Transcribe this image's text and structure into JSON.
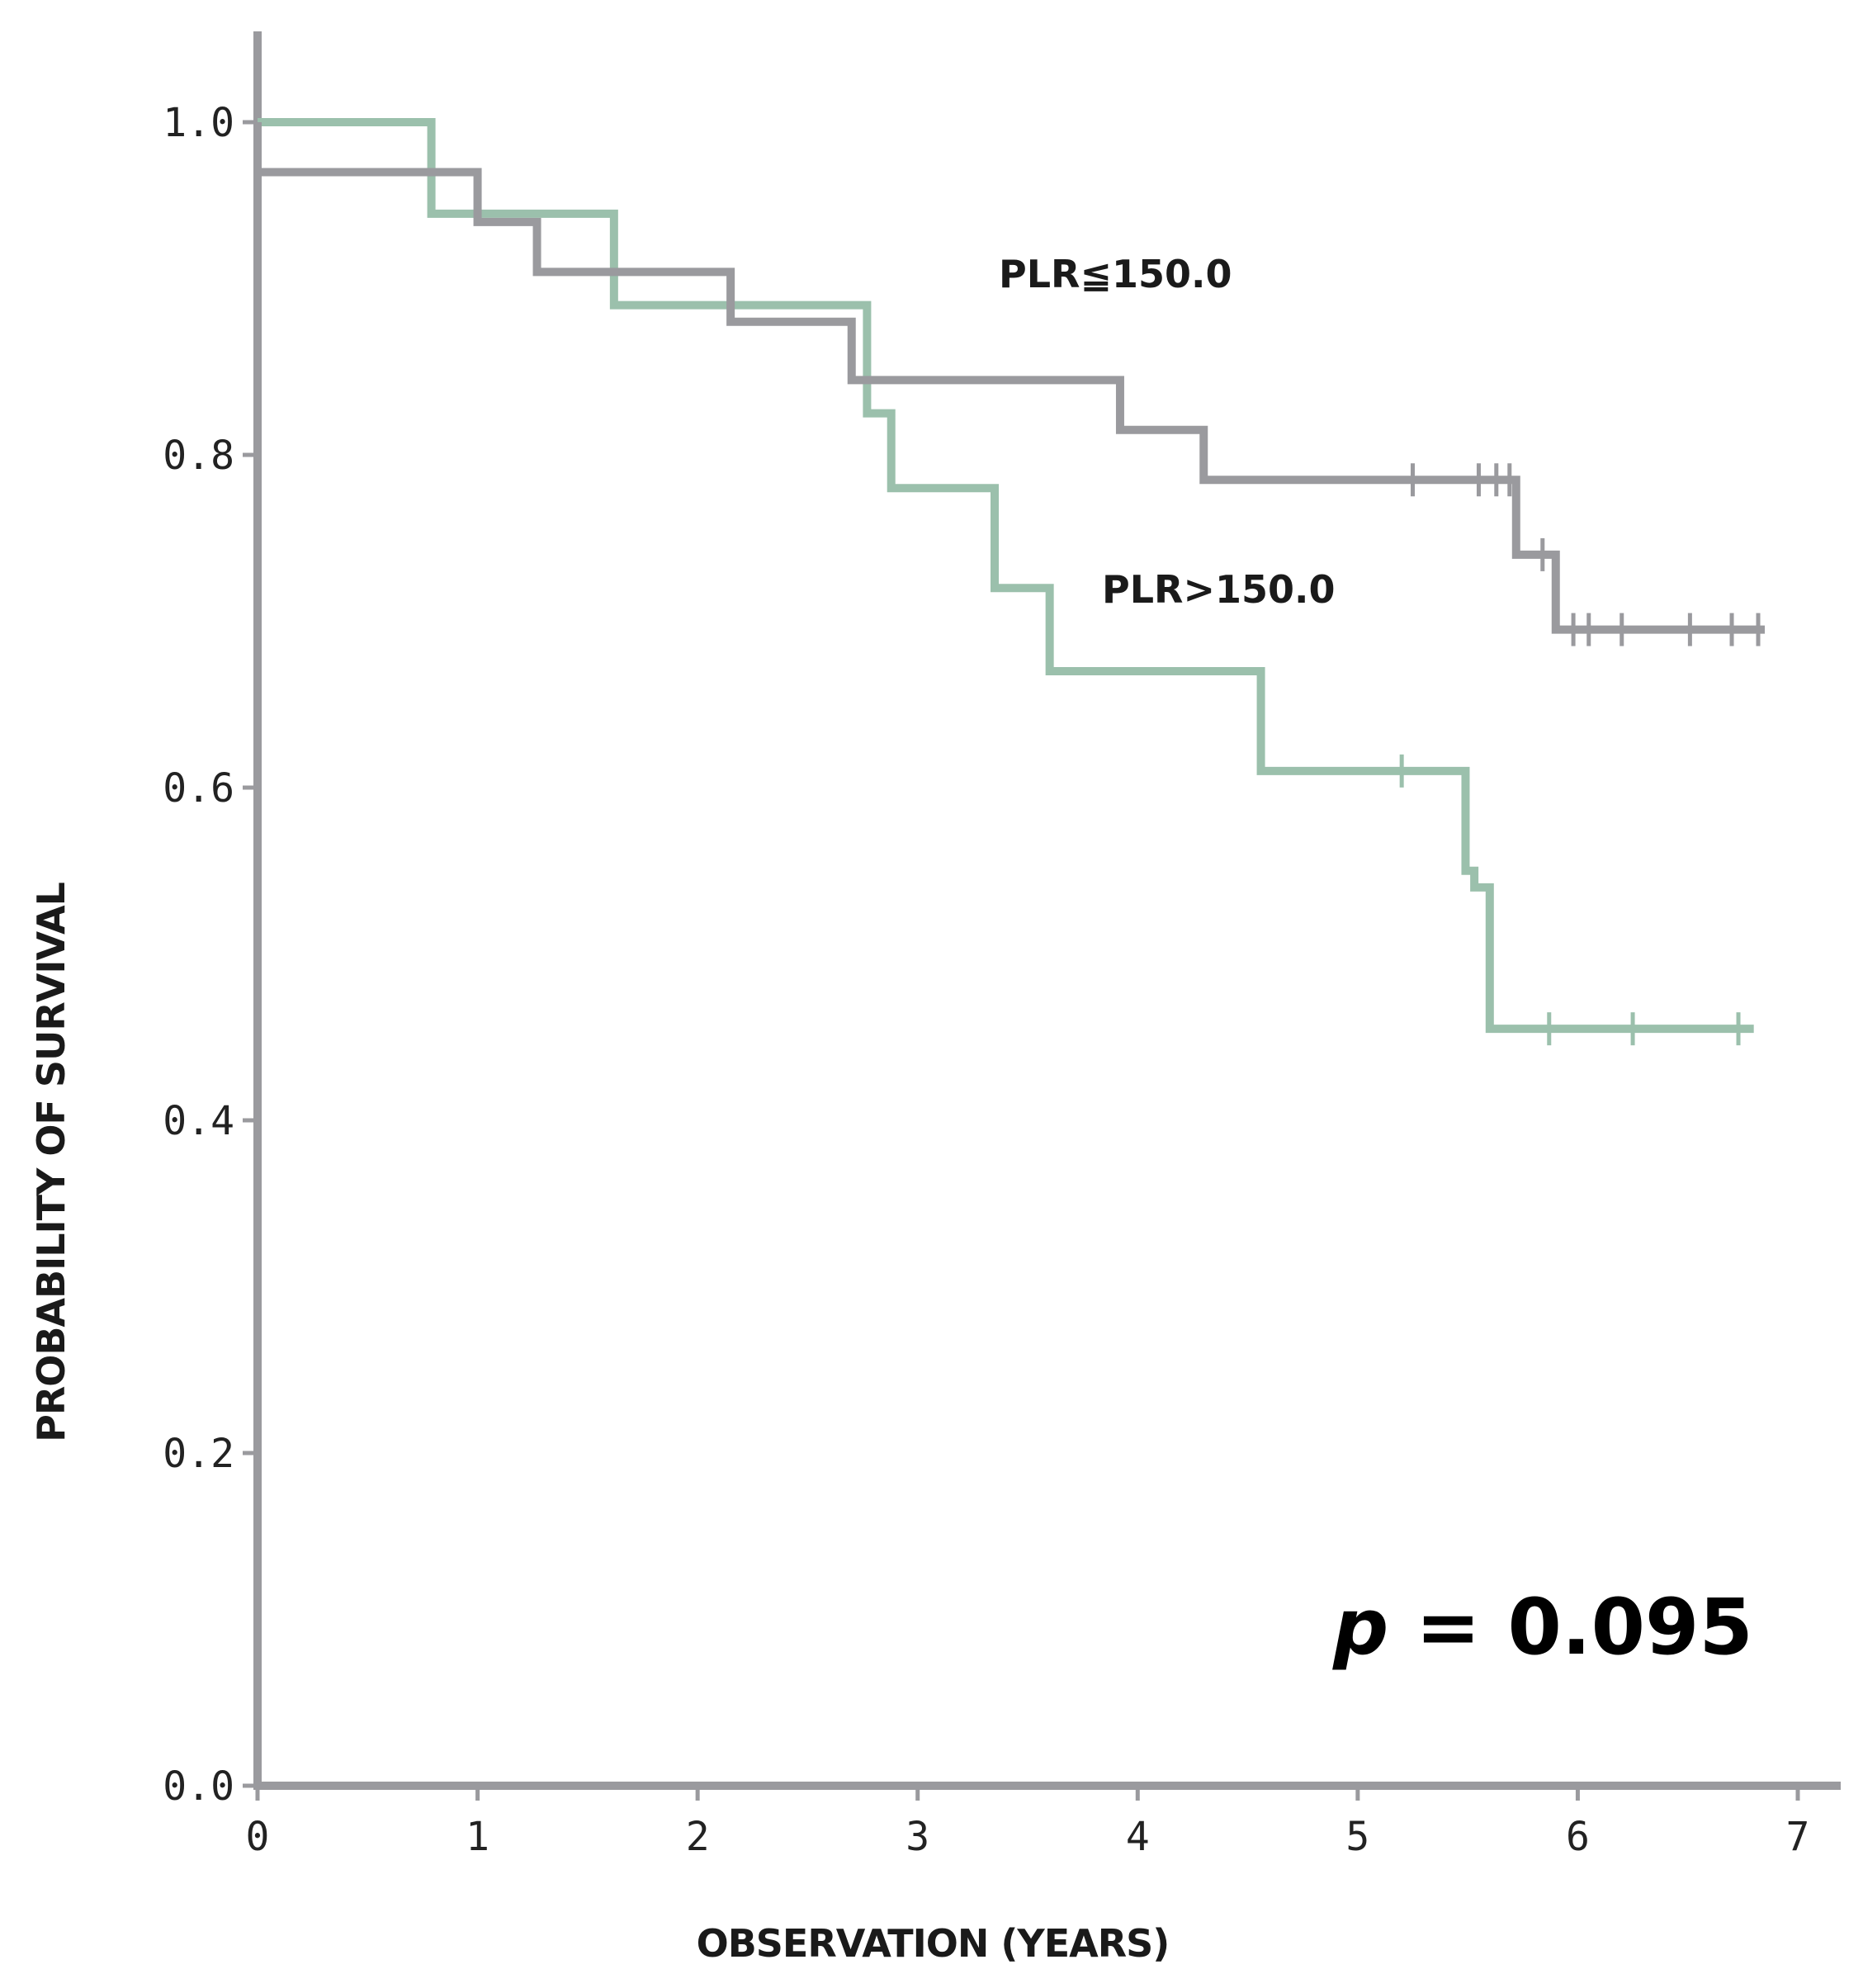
{
  "chart_data": {
    "type": "line",
    "subtype": "kaplan-meier step",
    "title": "",
    "xlabel": "OBSERVATION (YEARS)",
    "ylabel": "PROBABILITY OF SURVIVAL",
    "xlim": [
      0,
      7
    ],
    "ylim": [
      0,
      1.0
    ],
    "x_ticks": [
      "0",
      "1",
      "2",
      "3",
      "4",
      "5",
      "6",
      "7"
    ],
    "y_ticks": [
      "0.0",
      "0.2",
      "0.4",
      "0.6",
      "0.8",
      "1.0"
    ],
    "grid": false,
    "annotation": {
      "prefix": "p",
      "text": " = 0.095"
    },
    "series": [
      {
        "name": "PLR≦150.0",
        "color": "#9a9a9e",
        "steps": [
          [
            0,
            0.97
          ],
          [
            1.0,
            0.94
          ],
          [
            1.27,
            0.91
          ],
          [
            2.15,
            0.88
          ],
          [
            2.7,
            0.845
          ],
          [
            3.92,
            0.815
          ],
          [
            4.3,
            0.785
          ],
          [
            5.72,
            0.74
          ],
          [
            5.9,
            0.695
          ],
          [
            6.85,
            0.695
          ]
        ],
        "censored": [
          [
            5.25,
            0.785
          ],
          [
            5.55,
            0.785
          ],
          [
            5.63,
            0.785
          ],
          [
            5.69,
            0.785
          ],
          [
            5.84,
            0.74
          ],
          [
            5.98,
            0.695
          ],
          [
            6.05,
            0.695
          ],
          [
            6.2,
            0.695
          ],
          [
            6.51,
            0.695
          ],
          [
            6.7,
            0.695
          ],
          [
            6.82,
            0.695
          ]
        ]
      },
      {
        "name": "PLR>150.0",
        "color": "#9bc0ac",
        "steps": [
          [
            0,
            1.0
          ],
          [
            0.79,
            0.945
          ],
          [
            1.62,
            0.89
          ],
          [
            2.77,
            0.825
          ],
          [
            2.88,
            0.78
          ],
          [
            3.35,
            0.72
          ],
          [
            3.6,
            0.67
          ],
          [
            4.56,
            0.61
          ],
          [
            5.49,
            0.55
          ],
          [
            5.53,
            0.54
          ],
          [
            5.6,
            0.455
          ],
          [
            6.8,
            0.455
          ]
        ],
        "censored": [
          [
            5.2,
            0.61
          ],
          [
            5.87,
            0.455
          ],
          [
            6.25,
            0.455
          ],
          [
            6.73,
            0.455
          ]
        ]
      }
    ]
  }
}
